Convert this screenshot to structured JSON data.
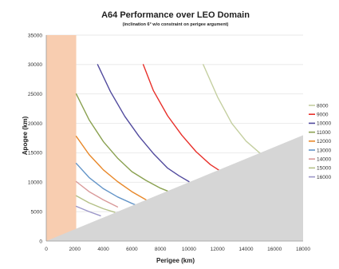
{
  "chart_data": {
    "type": "line",
    "title": "A64 Performance over LEO Domain",
    "subtitle": "(inclination 6° w/o constraint on perigee argument)",
    "xlabel": "Perigee (km)",
    "ylabel": "Apogee (km)",
    "xlim": [
      0,
      18000
    ],
    "ylim": [
      0,
      35000
    ],
    "xticks": [
      0,
      2000,
      4000,
      6000,
      8000,
      10000,
      12000,
      14000,
      16000,
      18000
    ],
    "yticks": [
      0,
      5000,
      10000,
      15000,
      20000,
      25000,
      30000,
      35000
    ],
    "grid": "horizontal",
    "legend_position": "right",
    "shaded_band": {
      "x_range": [
        0,
        2100
      ],
      "color": "#f8cdb0"
    },
    "infeasible_region": {
      "boundary": "apogee = perigee",
      "color": "#d6d6d6"
    },
    "series": [
      {
        "name": "8000",
        "color": "#c4cfa0",
        "x": [
          11000,
          12000,
          13000,
          14000,
          15000
        ],
        "y": [
          30000,
          24500,
          20000,
          17000,
          14900
        ]
      },
      {
        "name": "9000",
        "color": "#e8302a",
        "x": [
          6800,
          7500,
          8500,
          9500,
          10500,
          11500,
          12200
        ],
        "y": [
          30000,
          25600,
          21300,
          18000,
          15200,
          13000,
          11900
        ]
      },
      {
        "name": "10000",
        "color": "#524b9e",
        "x": [
          3600,
          4500,
          5500,
          6500,
          7500,
          8500,
          9300,
          10000
        ],
        "y": [
          30000,
          25400,
          21200,
          17800,
          14900,
          12400,
          11100,
          10100
        ]
      },
      {
        "name": "11000",
        "color": "#8aa150",
        "x": [
          2100,
          3000,
          4000,
          5000,
          6000,
          7000,
          8000,
          8500
        ],
        "y": [
          25000,
          20600,
          16900,
          14100,
          11800,
          10300,
          9000,
          8500
        ]
      },
      {
        "name": "12000",
        "color": "#e8882a",
        "x": [
          2100,
          3000,
          4000,
          5000,
          6000,
          7000
        ],
        "y": [
          17800,
          14700,
          12100,
          10100,
          8400,
          7000
        ]
      },
      {
        "name": "13000",
        "color": "#6495c8",
        "x": [
          2100,
          3000,
          4000,
          5000,
          6000,
          6300
        ],
        "y": [
          13200,
          10800,
          8900,
          7500,
          6400,
          6100
        ]
      },
      {
        "name": "14000",
        "color": "#d99a9a",
        "x": [
          2100,
          3000,
          4000,
          5000
        ],
        "y": [
          10100,
          8400,
          7000,
          5800
        ]
      },
      {
        "name": "15000",
        "color": "#b5c188",
        "x": [
          2100,
          3000,
          4000,
          4800
        ],
        "y": [
          7700,
          6500,
          5500,
          4900
        ]
      },
      {
        "name": "16000",
        "color": "#9c97c9",
        "x": [
          2100,
          3000,
          3800
        ],
        "y": [
          5900,
          5000,
          4300
        ]
      }
    ]
  }
}
